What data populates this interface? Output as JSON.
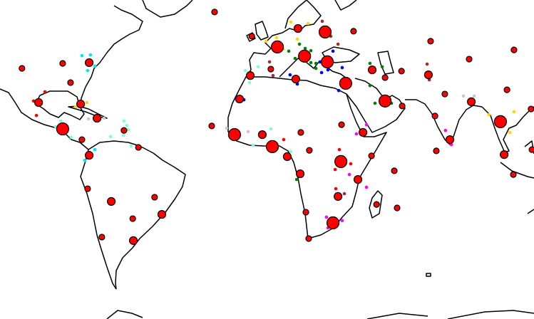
{
  "map": {
    "projection": "equirectangular",
    "colors": {
      "marker_fill": "#ff0000",
      "marker_stroke": "#000000",
      "coastline": "#000000",
      "cyan": "#00e5ff",
      "aqua": "#7fffd4",
      "red": "#ff0000",
      "gold": "#ffd700",
      "green": "#008000",
      "blue": "#0000ff",
      "brown": "#a52a2a",
      "magenta": "#ff00ff",
      "thistle": "#d8bfd8"
    },
    "marker_sizes": {
      "s": 4,
      "m": 5.5,
      "l": 8.5
    },
    "markers": [
      {
        "lon": -117,
        "lat": 36,
        "size": "s"
      },
      {
        "lon": -98.4,
        "lat": 38,
        "size": "s"
      },
      {
        "lon": -86.3,
        "lat": 38.3,
        "size": "m"
      },
      {
        "lon": -94.8,
        "lat": 30.3,
        "size": "s"
      },
      {
        "lon": -109.4,
        "lat": 22.3,
        "size": "m"
      },
      {
        "lon": -90.2,
        "lat": 21.7,
        "size": "m"
      },
      {
        "lon": -82.7,
        "lat": 16,
        "size": "m"
      },
      {
        "lon": -98.4,
        "lat": 11.7,
        "size": "l"
      },
      {
        "lon": -70.4,
        "lat": 11.1,
        "size": "s"
      },
      {
        "lon": -89.6,
        "lat": 7.4,
        "size": "s"
      },
      {
        "lon": -86.3,
        "lat": 1.1,
        "size": "m"
      },
      {
        "lon": -63.8,
        "lat": 4.3,
        "size": "s"
      },
      {
        "lon": -87,
        "lat": -12.3,
        "size": "s"
      },
      {
        "lon": -76.2,
        "lat": -17.4,
        "size": "m"
      },
      {
        "lon": -56.4,
        "lat": -15.7,
        "size": "s"
      },
      {
        "lon": -66.4,
        "lat": -24.3,
        "size": "s"
      },
      {
        "lon": -53.1,
        "lat": -22.6,
        "size": "m"
      },
      {
        "lon": -80.5,
        "lat": -31.7,
        "size": "s"
      },
      {
        "lon": -66.1,
        "lat": -33.1,
        "size": "m"
      },
      {
        "lon": -12,
        "lat": 48.9,
        "size": "s"
      },
      {
        "lon": -0.3,
        "lat": 44.6,
        "size": "l"
      },
      {
        "lon": 9.1,
        "lat": 52,
        "size": "m"
      },
      {
        "lon": 21.5,
        "lat": 50.6,
        "size": "l"
      },
      {
        "lon": 34.5,
        "lat": 50.9,
        "size": "s"
      },
      {
        "lon": 12.1,
        "lat": 40.9,
        "size": "l"
      },
      {
        "lon": -3.3,
        "lat": 35.7,
        "size": "s"
      },
      {
        "lon": -12.7,
        "lat": 33.1,
        "size": "m"
      },
      {
        "lon": 8.1,
        "lat": 31.7,
        "size": "m"
      },
      {
        "lon": 22.5,
        "lat": 38.6,
        "size": "l"
      },
      {
        "lon": 30.9,
        "lat": 30,
        "size": "l"
      },
      {
        "lon": 43,
        "lat": 35.4,
        "size": "m"
      },
      {
        "lon": 48.9,
        "lat": 22.9,
        "size": "l"
      },
      {
        "lon": 56.4,
        "lat": 34.9,
        "size": "s"
      },
      {
        "lon": 48.9,
        "lat": 32.3,
        "size": "s"
      },
      {
        "lon": 56.7,
        "lat": 20.9,
        "size": "s"
      },
      {
        "lon": -17.6,
        "lat": 23.7,
        "size": "m"
      },
      {
        "lon": 69.7,
        "lat": 46.9,
        "size": "s"
      },
      {
        "lon": 87.3,
        "lat": 39.7,
        "size": "s"
      },
      {
        "lon": 107.8,
        "lat": 43.4,
        "size": "s"
      },
      {
        "lon": 68.7,
        "lat": 33.4,
        "size": "m"
      },
      {
        "lon": 76.2,
        "lat": 25.7,
        "size": "s"
      },
      {
        "lon": 104.6,
        "lat": 27.4,
        "size": "s"
      },
      {
        "lon": 88.3,
        "lat": 22.6,
        "size": "m"
      },
      {
        "lon": 71.7,
        "lat": 16.9,
        "size": "s"
      },
      {
        "lon": 78.5,
        "lat": 7.4,
        "size": "m"
      },
      {
        "lon": 101.6,
        "lat": 14.6,
        "size": "l"
      },
      {
        "lon": 115.6,
        "lat": 19.7,
        "size": "s"
      },
      {
        "lon": 72.3,
        "lat": 2.9,
        "size": "s"
      },
      {
        "lon": 103.3,
        "lat": 1.4,
        "size": "m"
      },
      {
        "lon": 107.5,
        "lat": -6.6,
        "size": "s"
      },
      {
        "lon": 116,
        "lat": 3.4,
        "size": "s"
      },
      {
        "lon": -30.3,
        "lat": 12.9,
        "size": "s"
      },
      {
        "lon": -19.9,
        "lat": 9.4,
        "size": "l"
      },
      {
        "lon": -7.2,
        "lat": 9.4,
        "size": "m"
      },
      {
        "lon": -2.6,
        "lat": 4.6,
        "size": "l"
      },
      {
        "lon": 10.4,
        "lat": 10.3,
        "size": "s"
      },
      {
        "lon": 4.2,
        "lat": 0.6,
        "size": "m"
      },
      {
        "lon": 14.3,
        "lat": 3.1,
        "size": "s"
      },
      {
        "lon": 38.8,
        "lat": 10.3,
        "size": "m"
      },
      {
        "lon": 28.7,
        "lat": -1.4,
        "size": "l"
      },
      {
        "lon": 29,
        "lat": 13.4,
        "size": "s"
      },
      {
        "lon": 10.1,
        "lat": -6.3,
        "size": "m"
      },
      {
        "lon": 42.7,
        "lat": 0.9,
        "size": "s"
      },
      {
        "lon": 36.5,
        "lat": -8.6,
        "size": "m"
      },
      {
        "lon": 53.1,
        "lat": -5.1,
        "size": "s"
      },
      {
        "lon": 27.4,
        "lat": -15.4,
        "size": "m"
      },
      {
        "lon": 12.7,
        "lat": -21.7,
        "size": "s"
      },
      {
        "lon": 45,
        "lat": -18.6,
        "size": "s"
      },
      {
        "lon": 54.4,
        "lat": -20,
        "size": "s"
      },
      {
        "lon": 25.1,
        "lat": -26,
        "size": "l"
      },
      {
        "lon": 14,
        "lat": -32.3,
        "size": "s"
      },
      {
        "lon": -29,
        "lat": 58.6,
        "size": "s"
      }
    ],
    "points": [
      {
        "lon": -89.6,
        "lat": 41.1,
        "color": "cyan"
      },
      {
        "lon": -85.7,
        "lat": 41.4,
        "color": "cyan"
      },
      {
        "lon": -83.7,
        "lat": 36.9,
        "color": "cyan"
      },
      {
        "lon": -87,
        "lat": 35.1,
        "color": "cyan"
      },
      {
        "lon": -83.7,
        "lat": 3.4,
        "color": "cyan"
      },
      {
        "lon": -88.3,
        "lat": -0.9,
        "color": "cyan"
      },
      {
        "lon": -99.3,
        "lat": 14.9,
        "color": "aqua"
      },
      {
        "lon": -101.6,
        "lat": 12.6,
        "color": "aqua"
      },
      {
        "lon": -94.5,
        "lat": 8.3,
        "color": "aqua"
      },
      {
        "lon": -70.4,
        "lat": 14.9,
        "color": "aqua"
      },
      {
        "lon": -69.1,
        "lat": 13.1,
        "color": "aqua"
      },
      {
        "lon": -68.4,
        "lat": 11.4,
        "color": "aqua"
      },
      {
        "lon": -70.7,
        "lat": 9.1,
        "color": "aqua"
      },
      {
        "lon": -76.5,
        "lat": 8.6,
        "color": "aqua"
      },
      {
        "lon": -67.1,
        "lat": 4.9,
        "color": "aqua"
      },
      {
        "lon": -9.1,
        "lat": 36.6,
        "color": "aqua"
      },
      {
        "lon": -15,
        "lat": 35.1,
        "color": "aqua"
      },
      {
        "lon": -13,
        "lat": 30.3,
        "color": "aqua"
      },
      {
        "lon": -3.3,
        "lat": 11.7,
        "color": "aqua"
      },
      {
        "lon": 5.9,
        "lat": 2.6,
        "color": "aqua"
      },
      {
        "lon": -11.4,
        "lat": 5.1,
        "color": "aqua"
      },
      {
        "lon": -106.5,
        "lat": 26.6,
        "color": "red"
      },
      {
        "lon": -111.7,
        "lat": 22.9,
        "color": "red"
      },
      {
        "lon": -110.4,
        "lat": 17.1,
        "color": "red"
      },
      {
        "lon": 2.6,
        "lat": 7.4,
        "color": "red"
      },
      {
        "lon": 28,
        "lat": 3.4,
        "color": "red"
      },
      {
        "lon": 26.1,
        "lat": -4.6,
        "color": "red"
      },
      {
        "lon": 33.2,
        "lat": -2.3,
        "color": "red"
      },
      {
        "lon": 26.4,
        "lat": -12.3,
        "color": "red"
      },
      {
        "lon": -87.3,
        "lat": 22.3,
        "color": "gold"
      },
      {
        "lon": -92.5,
        "lat": 20.6,
        "color": "gold"
      },
      {
        "lon": 5.9,
        "lat": 54.6,
        "color": "gold"
      },
      {
        "lon": 13.7,
        "lat": 54,
        "color": "gold"
      },
      {
        "lon": -5.5,
        "lat": 46.9,
        "color": "gold"
      },
      {
        "lon": -0.7,
        "lat": 48.3,
        "color": "gold"
      },
      {
        "lon": 8.8,
        "lat": 47.7,
        "color": "gold"
      },
      {
        "lon": 2.3,
        "lat": 43.7,
        "color": "gold"
      },
      {
        "lon": 96.4,
        "lat": 17.4,
        "color": "gold"
      },
      {
        "lon": 105.9,
        "lat": 10.3,
        "color": "gold"
      },
      {
        "lon": 107.8,
        "lat": 18.6,
        "color": "gold"
      },
      {
        "lon": -54.1,
        "lat": -22.3,
        "color": "gold"
      },
      {
        "lon": 9.8,
        "lat": 45.7,
        "color": "green"
      },
      {
        "lon": 4.9,
        "lat": 42.9,
        "color": "green"
      },
      {
        "lon": 12.4,
        "lat": 44,
        "color": "green"
      },
      {
        "lon": 15,
        "lat": 43.1,
        "color": "green"
      },
      {
        "lon": 15,
        "lat": 38.3,
        "color": "green"
      },
      {
        "lon": 17.3,
        "lat": 38,
        "color": "green"
      },
      {
        "lon": 17.3,
        "lat": 36,
        "color": "green"
      },
      {
        "lon": 14.3,
        "lat": 41.1,
        "color": "green"
      },
      {
        "lon": 7.8,
        "lat": 40,
        "color": "green"
      },
      {
        "lon": 42,
        "lat": 38,
        "color": "green"
      },
      {
        "lon": 47.6,
        "lat": 36.6,
        "color": "green"
      },
      {
        "lon": 42,
        "lat": 29.1,
        "color": "green"
      },
      {
        "lon": 44.3,
        "lat": 22,
        "color": "green"
      },
      {
        "lon": 51.8,
        "lat": 22,
        "color": "green"
      },
      {
        "lon": 8.5,
        "lat": -8.6,
        "color": "green"
      },
      {
        "lon": 25.1,
        "lat": 42.9,
        "color": "blue"
      },
      {
        "lon": 19.2,
        "lat": 38.6,
        "color": "blue"
      },
      {
        "lon": 22.8,
        "lat": 35.4,
        "color": "blue"
      },
      {
        "lon": 29.3,
        "lat": 36.3,
        "color": "blue"
      },
      {
        "lon": 19.9,
        "lat": 34.3,
        "color": "blue"
      },
      {
        "lon": 5.5,
        "lat": 33.4,
        "color": "blue"
      },
      {
        "lon": 8.8,
        "lat": 29.7,
        "color": "blue"
      },
      {
        "lon": 27.7,
        "lat": 27.1,
        "color": "blue"
      },
      {
        "lon": -19.2,
        "lat": 24,
        "color": "blue"
      },
      {
        "lon": -15.6,
        "lat": 23.4,
        "color": "blue"
      },
      {
        "lon": 20.2,
        "lat": 54.9,
        "color": "brown"
      },
      {
        "lon": 24.1,
        "lat": 48.9,
        "color": "brown"
      },
      {
        "lon": 27.4,
        "lat": 45.7,
        "color": "brown"
      },
      {
        "lon": -3.9,
        "lat": 38.6,
        "color": "brown"
      },
      {
        "lon": -2.3,
        "lat": 33.1,
        "color": "brown"
      },
      {
        "lon": 68.1,
        "lat": 37.7,
        "color": "brown"
      },
      {
        "lon": 69.1,
        "lat": 31.4,
        "color": "brown"
      },
      {
        "lon": 30.3,
        "lat": -14.3,
        "color": "brown"
      },
      {
        "lon": 76.5,
        "lat": 11.1,
        "color": "magenta"
      },
      {
        "lon": 79.2,
        "lat": 5.4,
        "color": "magenta"
      },
      {
        "lon": 40.4,
        "lat": 13.4,
        "color": "magenta"
      },
      {
        "lon": 35.8,
        "lat": 9.7,
        "color": "magenta"
      },
      {
        "lon": 32.6,
        "lat": -6.6,
        "color": "magenta"
      },
      {
        "lon": 40.4,
        "lat": -11.7,
        "color": "magenta"
      },
      {
        "lon": 22.1,
        "lat": -23.7,
        "color": "magenta"
      },
      {
        "lon": 22.8,
        "lat": -28,
        "color": "magenta"
      },
      {
        "lon": 29.3,
        "lat": -25.1,
        "color": "magenta"
      },
      {
        "lon": -86.6,
        "lat": 15.7,
        "color": "thistle"
      },
      {
        "lon": -79.5,
        "lat": 16,
        "color": "thistle"
      },
      {
        "lon": 84.7,
        "lat": 24.9,
        "color": "thistle"
      },
      {
        "lon": 89.6,
        "lat": 24.9,
        "color": "thistle"
      },
      {
        "lon": -23.5,
        "lat": 12,
        "color": "thistle"
      },
      {
        "lon": -13.7,
        "lat": 10.6,
        "color": "thistle"
      }
    ]
  }
}
